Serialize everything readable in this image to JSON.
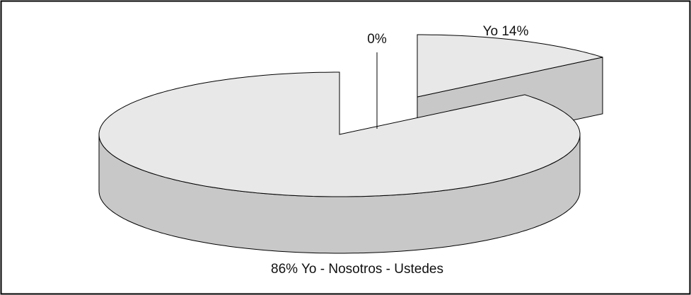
{
  "chart_data": {
    "type": "pie3d",
    "values": [
      14,
      86,
      0
    ],
    "value_labels": [
      "Yo 14%",
      "86% Yo - Nosotros - Ustedes",
      "0%"
    ],
    "colors": [
      "#e8e8e8",
      "#e8e8e8",
      "#e8e8e8"
    ]
  }
}
